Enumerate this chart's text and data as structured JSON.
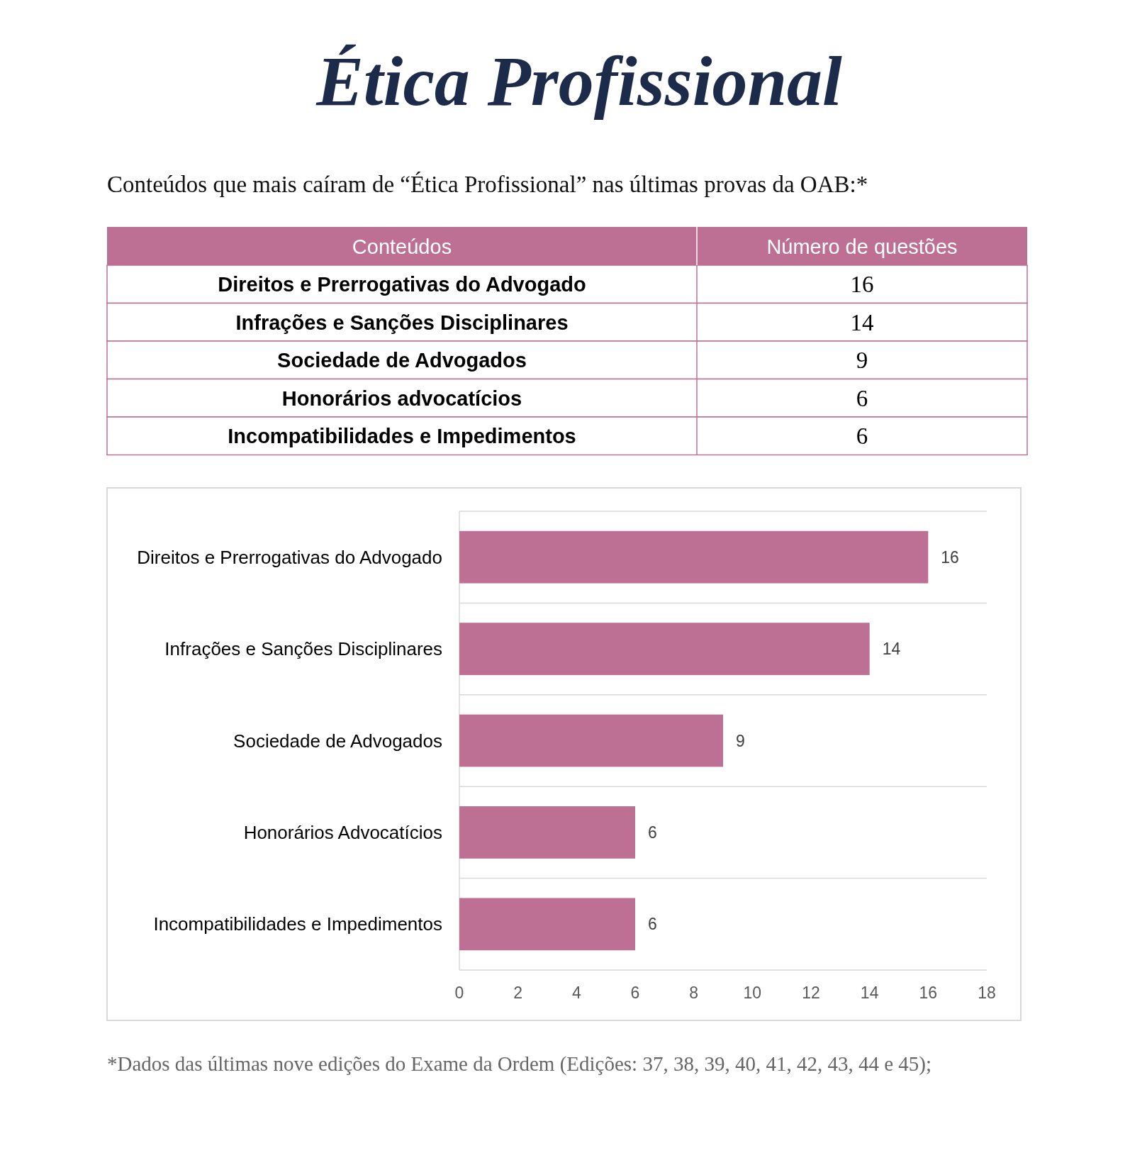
{
  "chart_data": [
    {
      "type": "other",
      "title": "Ética Profissional",
      "subtitle": "Conteúdos que mais caíram de “Ética Profissional” nas últimas provas da OAB:*",
      "xlabel": "Conteúdos",
      "ylabel": "Número de questões",
      "categories": [
        "Direitos e Prerrogativas do Advogado",
        "Infrações e Sanções Disciplinares",
        "Sociedade de Advogados",
        "Honorários advocatícios",
        "Incompatibilidades e Impedimentos"
      ],
      "values": [
        16,
        14,
        9,
        6,
        6
      ],
      "data_labels": true,
      "color": "#bd7093"
    },
    {
      "type": "bar",
      "orientation": "horizontal",
      "categories": [
        "Direitos e Prerrogativas do Advogado",
        "Infrações e Sanções Disciplinares",
        "Sociedade de Advogados",
        "Honorários Advocatícios",
        "Incompatibilidades e Impedimentos"
      ],
      "values": [
        16,
        14,
        9,
        6,
        6
      ],
      "color": "#bd7093",
      "xlim": [
        0,
        18
      ],
      "xticks": [
        0,
        2,
        4,
        6,
        8,
        10,
        12,
        14,
        16,
        18
      ],
      "data_labels": true,
      "grid": "y",
      "annotations": [
        "*Dados das últimas nove edições do Exame da Ordem (Edições: 37, 38, 39, 40, 41, 42, 43, 44 e 45);"
      ]
    }
  ]
}
